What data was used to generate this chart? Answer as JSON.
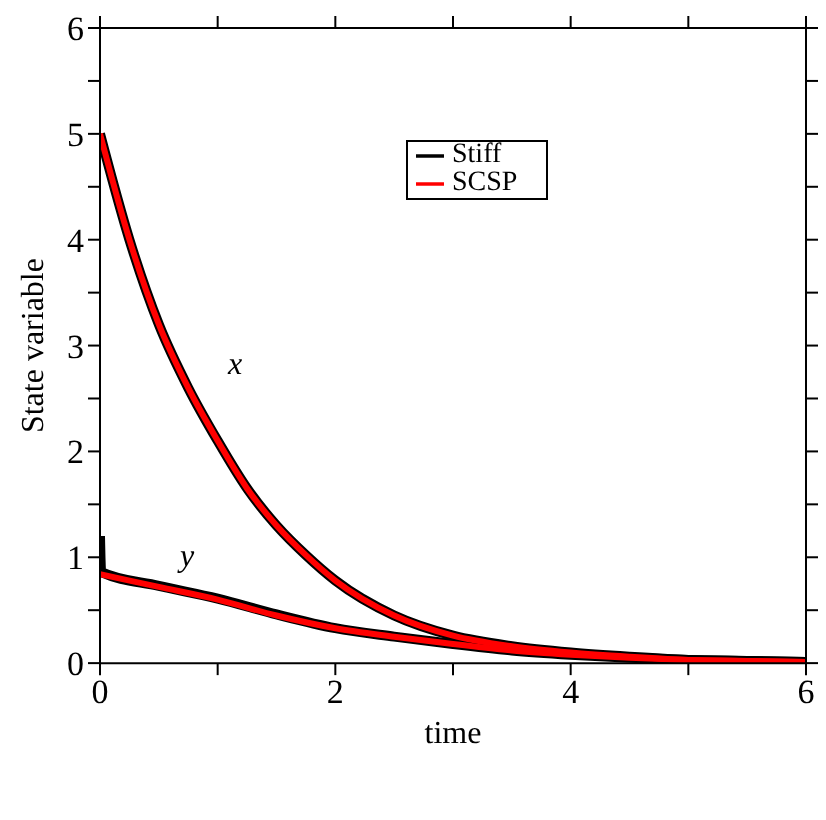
{
  "chart_data": {
    "type": "line",
    "xlabel": "time",
    "ylabel": "State variable",
    "xlim": [
      0,
      6
    ],
    "xticks": [
      0,
      {
        "value": 1,
        "label": null
      },
      2,
      {
        "value": 3,
        "label": null
      },
      4,
      {
        "value": 5,
        "label": null
      },
      6
    ],
    "ylim": [
      0,
      6
    ],
    "yticks": [
      0,
      {
        "value": 0.5,
        "label": null
      },
      1,
      {
        "value": 1.5,
        "label": null
      },
      2,
      {
        "value": 2.5,
        "label": null
      },
      3,
      {
        "value": 3.5,
        "label": null
      },
      4,
      {
        "value": 4.5,
        "label": null
      },
      5,
      {
        "value": 5.5,
        "label": null
      },
      6
    ],
    "legend": "top",
    "marker": "none",
    "line_style": "solid",
    "annotations": [
      "x",
      "y"
    ],
    "series": [
      {
        "name": "Stiff",
        "color": "#000000",
        "x": [
          0,
          0.25,
          0.5,
          0.75,
          1,
          1.25,
          1.5,
          1.75,
          2,
          2.5,
          3,
          3.5,
          4,
          4.5,
          5,
          5.5,
          6
        ],
        "values": [
          5,
          4,
          3.2,
          2.6,
          2.1,
          1.65,
          1.3,
          1.02,
          0.78,
          0.45,
          0.26,
          0.16,
          0.1,
          0.06,
          0.03,
          0.02,
          0.01
        ]
      },
      {
        "color": "#000000",
        "x": [
          0,
          0.01,
          0.5,
          1,
          1.5,
          2,
          2.5,
          3,
          3.5,
          4,
          4.5,
          5,
          5.5,
          6
        ],
        "values": [
          1.2,
          0.86,
          0.73,
          0.61,
          0.46,
          0.33,
          0.25,
          0.18,
          0.12,
          0.08,
          0.05,
          0.03,
          0.02,
          0.01
        ]
      },
      {
        "name": "SCSP",
        "color": "#ff0000",
        "x": [
          0,
          0.25,
          0.5,
          0.75,
          1,
          1.25,
          1.5,
          1.75,
          2,
          2.5,
          3,
          3.5,
          4,
          4.5,
          5,
          5.5,
          6
        ],
        "values": [
          5,
          4,
          3.2,
          2.6,
          2.1,
          1.65,
          1.3,
          1.02,
          0.78,
          0.45,
          0.26,
          0.16,
          0.1,
          0.06,
          0.03,
          0.02,
          0.01
        ]
      },
      {
        "color": "#ff0000",
        "x": [
          0,
          0.5,
          1,
          1.5,
          2,
          2.5,
          3,
          3.5,
          4,
          4.5,
          5,
          5.5,
          6
        ],
        "values": [
          0.84,
          0.72,
          0.6,
          0.45,
          0.33,
          0.25,
          0.18,
          0.12,
          0.08,
          0.05,
          0.03,
          0.02,
          0.01
        ]
      }
    ]
  }
}
